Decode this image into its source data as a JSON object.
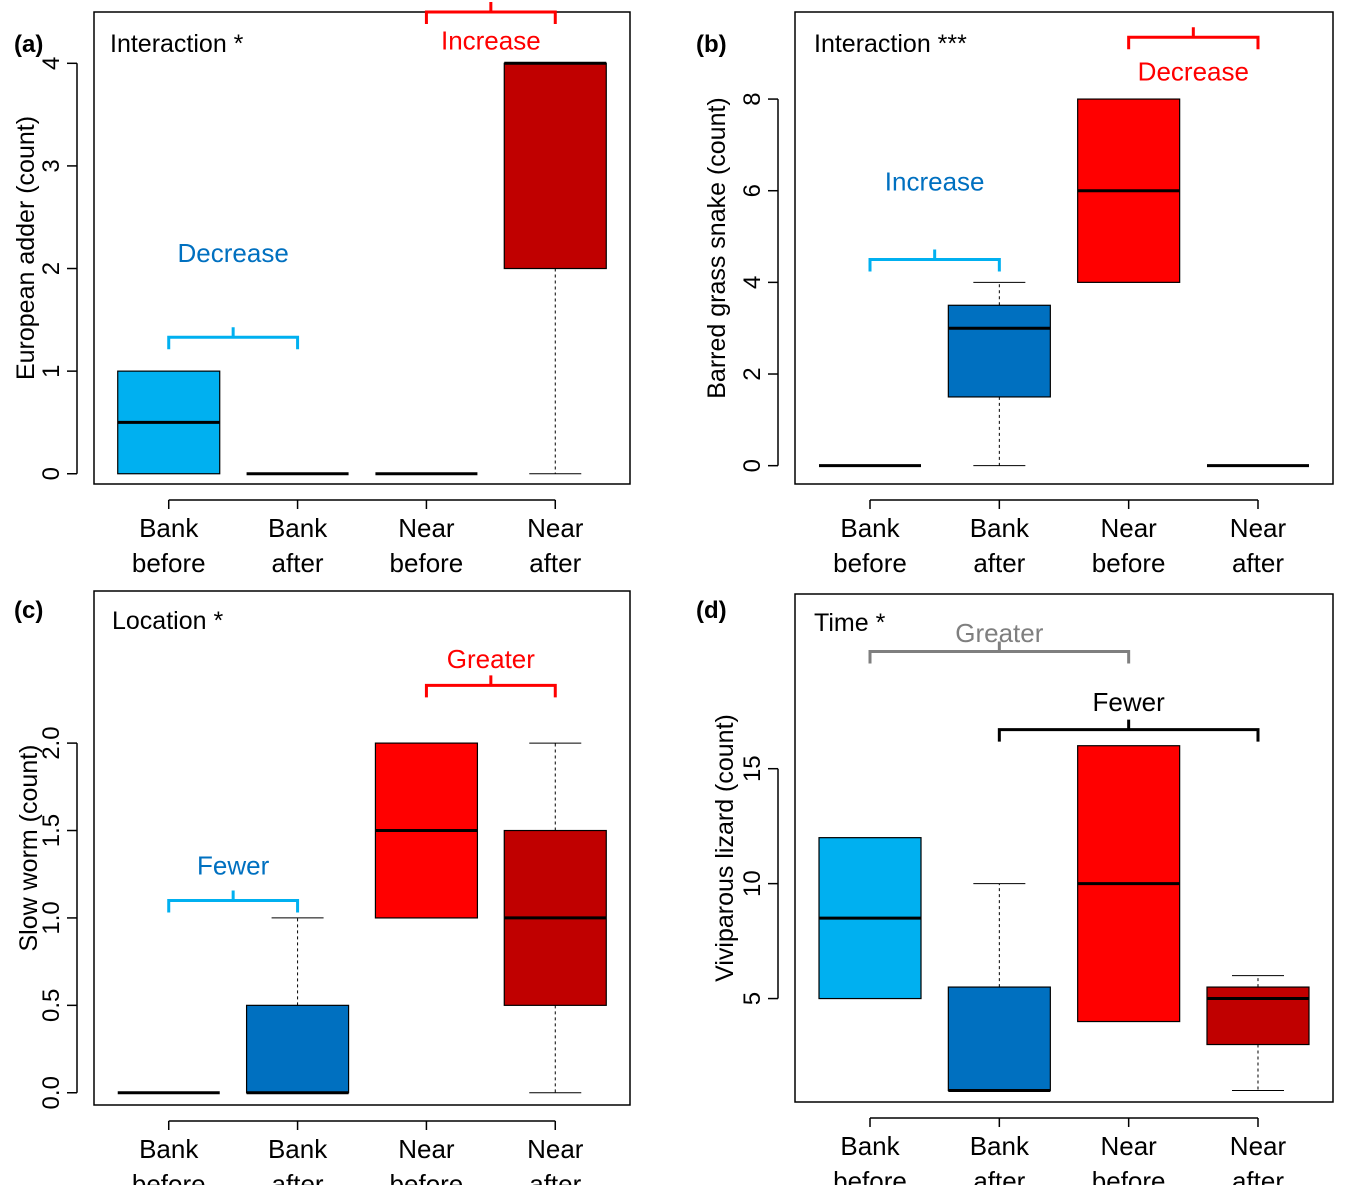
{
  "chart_data": [
    {
      "panel": "(a)",
      "type": "boxplot",
      "annotation": "Interaction *",
      "ylabel": "European adder (count)",
      "ylim": [
        -0.1,
        4.5
      ],
      "yticks": [
        {
          "v": 0,
          "label": "0"
        },
        {
          "v": 1,
          "label": "1"
        },
        {
          "v": 2,
          "label": "2"
        },
        {
          "v": 3,
          "label": "3"
        },
        {
          "v": 4,
          "label": "4"
        }
      ],
      "categories": [
        [
          "Bank",
          "before"
        ],
        [
          "Bank",
          "after"
        ],
        [
          "Near",
          "before"
        ],
        [
          "Near",
          "after"
        ]
      ],
      "boxes": [
        {
          "min": 0,
          "q1": 0,
          "median": 0.5,
          "q3": 1,
          "max": 1,
          "color": "#00b0f0"
        },
        {
          "min": 0,
          "q1": 0,
          "median": 0,
          "q3": 0,
          "max": 0,
          "color": "#0070c0"
        },
        {
          "min": 0,
          "q1": 0,
          "median": 0,
          "q3": 0,
          "max": 0,
          "color": "#ff0000"
        },
        {
          "min": 0,
          "q1": 2,
          "median": 4,
          "q3": 4,
          "max": 4,
          "color": "#c00000"
        }
      ],
      "brackets": [
        {
          "label": "Decrease",
          "from": 0,
          "to": 1,
          "y": 1.33,
          "color": "#00b0f0",
          "text_color": "#0070c0",
          "text_y": 2.15
        },
        {
          "label": "Increase",
          "from": 2,
          "to": 3,
          "y": 4.5,
          "color": "#ff0000",
          "text_color": "#ff0000",
          "text_y": 4.22
        }
      ]
    },
    {
      "panel": "(b)",
      "type": "boxplot",
      "annotation": "Interaction ***",
      "ylabel": "Barred grass snake (count)",
      "ylim": [
        -0.4,
        9.9
      ],
      "yticks": [
        {
          "v": 0,
          "label": "0"
        },
        {
          "v": 2,
          "label": "2"
        },
        {
          "v": 4,
          "label": "4"
        },
        {
          "v": 6,
          "label": "6"
        },
        {
          "v": 8,
          "label": "8"
        }
      ],
      "categories": [
        [
          "Bank",
          "before"
        ],
        [
          "Bank",
          "after"
        ],
        [
          "Near",
          "before"
        ],
        [
          "Near",
          "after"
        ]
      ],
      "boxes": [
        {
          "min": 0,
          "q1": 0,
          "median": 0,
          "q3": 0,
          "max": 0,
          "color": "#00b0f0"
        },
        {
          "min": 0,
          "q1": 1.5,
          "median": 3,
          "q3": 3.5,
          "max": 4,
          "color": "#0070c0"
        },
        {
          "min": 4,
          "q1": 4,
          "median": 6,
          "q3": 8,
          "max": 8,
          "color": "#ff0000"
        },
        {
          "min": 0,
          "q1": 0,
          "median": 0,
          "q3": 0,
          "max": 0,
          "color": "#c00000"
        }
      ],
      "brackets": [
        {
          "label": "Increase",
          "from": 0,
          "to": 1,
          "y": 4.5,
          "color": "#00b0f0",
          "text_color": "#0070c0",
          "text_y": 6.2
        },
        {
          "label": "Decrease",
          "from": 2,
          "to": 3,
          "y": 9.35,
          "color": "#ff0000",
          "text_color": "#ff0000",
          "text_y": 8.6
        }
      ]
    },
    {
      "panel": "(c)",
      "type": "boxplot",
      "annotation": "Location *",
      "ylabel": "Slow worm (count)",
      "ylim": [
        -0.07,
        2.87
      ],
      "yticks": [
        {
          "v": 0,
          "label": "0.0"
        },
        {
          "v": 0.5,
          "label": "0.5"
        },
        {
          "v": 1,
          "label": "1.0"
        },
        {
          "v": 1.5,
          "label": "1.5"
        },
        {
          "v": 2,
          "label": "2.0"
        }
      ],
      "categories": [
        [
          "Bank",
          "before"
        ],
        [
          "Bank",
          "after"
        ],
        [
          "Near",
          "before"
        ],
        [
          "Near",
          "after"
        ]
      ],
      "boxes": [
        {
          "min": 0,
          "q1": 0,
          "median": 0,
          "q3": 0,
          "max": 0,
          "color": "#00b0f0"
        },
        {
          "min": 0,
          "q1": 0,
          "median": 0,
          "q3": 0.5,
          "max": 1,
          "color": "#0070c0"
        },
        {
          "min": 1,
          "q1": 1,
          "median": 1.5,
          "q3": 2,
          "max": 2,
          "color": "#ff0000"
        },
        {
          "min": 0,
          "q1": 0.5,
          "median": 1,
          "q3": 1.5,
          "max": 2,
          "color": "#c00000"
        }
      ],
      "brackets": [
        {
          "label": "Fewer",
          "from": 0,
          "to": 1,
          "y": 1.1,
          "color": "#00b0f0",
          "text_color": "#0070c0",
          "text_y": 1.3
        },
        {
          "label": "Greater",
          "from": 2,
          "to": 3,
          "y": 2.33,
          "color": "#ff0000",
          "text_color": "#ff0000",
          "text_y": 2.48
        }
      ]
    },
    {
      "panel": "(d)",
      "type": "boxplot",
      "annotation": "Time *",
      "ylabel": "Viviparous lizard (count)",
      "ylim": [
        0.5,
        22.6
      ],
      "yticks": [
        {
          "v": 5,
          "label": "5"
        },
        {
          "v": 10,
          "label": "10"
        },
        {
          "v": 15,
          "label": "15"
        }
      ],
      "categories": [
        [
          "Bank",
          "before"
        ],
        [
          "Bank",
          "after"
        ],
        [
          "Near",
          "before"
        ],
        [
          "Near",
          "after"
        ]
      ],
      "boxes": [
        {
          "min": 5,
          "q1": 5,
          "median": 8.5,
          "q3": 12,
          "max": 12,
          "color": "#00b0f0"
        },
        {
          "min": 1,
          "q1": 1,
          "median": 1,
          "q3": 5.5,
          "max": 10,
          "color": "#0070c0"
        },
        {
          "min": 4,
          "q1": 4,
          "median": 10,
          "q3": 16,
          "max": 16,
          "color": "#ff0000"
        },
        {
          "min": 1,
          "q1": 3,
          "median": 5,
          "q3": 5.5,
          "max": 6,
          "color": "#c00000"
        }
      ],
      "brackets": [
        {
          "label": "Greater",
          "from": 0,
          "to": 2,
          "y": 20.1,
          "color": "#7f7f7f",
          "text_color": "#7f7f7f",
          "text_y": 20.9
        },
        {
          "label": "Fewer",
          "from": 1,
          "to": 3,
          "y": 16.7,
          "color": "#000000",
          "text_color": "#000000",
          "text_y": 17.9
        }
      ]
    }
  ]
}
